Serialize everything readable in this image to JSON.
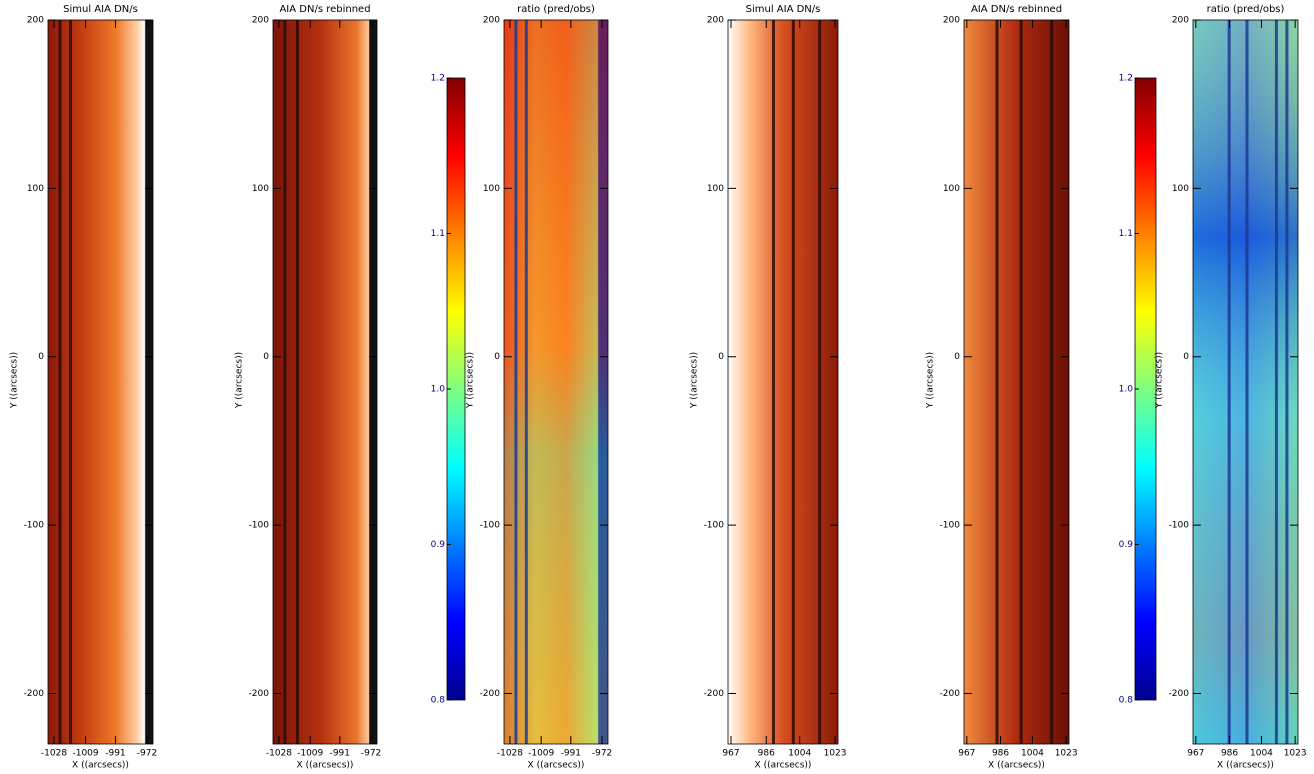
{
  "chart_data": [
    {
      "type": "image",
      "title": "Simul AIA DN/s",
      "xlabel": "X ((arcsecs))",
      "ylabel": "Y ((arcsecs))",
      "xlim": [
        -1031.6,
        -968.4
      ],
      "xticks": [
        -1028,
        -1009,
        -991,
        -972
      ],
      "ylim": [
        -230,
        200
      ],
      "yticks": [
        -200,
        -100,
        0,
        100,
        200
      ]
    },
    {
      "type": "image",
      "title": "AIA DN/s rebinned",
      "xlabel": "X ((arcsecs))",
      "ylabel": "Y ((arcsecs))",
      "xlim": [
        -1031.6,
        -968.4
      ],
      "xticks": [
        -1028,
        -1009,
        -991,
        -972
      ],
      "ylim": [
        -230,
        200
      ],
      "yticks": [
        -200,
        -100,
        0,
        100,
        200
      ]
    },
    {
      "type": "colorbar",
      "ylim": [
        0.8,
        1.2
      ],
      "yticks": [
        0.8,
        0.9,
        {
          "value": 1,
          "label": "1.0"
        },
        1.1,
        1.2
      ]
    },
    {
      "type": "image",
      "title": "ratio (pred/obs)",
      "xlabel": "X ((arcsecs))",
      "ylabel": "Y ((arcsecs))",
      "xlim": [
        -1031.6,
        -968.4
      ],
      "xticks": [
        -1028,
        -1009,
        -991,
        -972
      ],
      "ylim": [
        -230,
        200
      ],
      "yticks": [
        -200,
        -100,
        0,
        100,
        200
      ]
    },
    {
      "type": "image",
      "title": "Simul AIA DN/s",
      "xlabel": "X ((arcsecs))",
      "ylabel": "Y ((arcsecs))",
      "xlim": [
        965.4,
        1024.6
      ],
      "xticks": [
        967,
        986,
        1004,
        1023
      ],
      "ylim": [
        -230,
        200
      ],
      "yticks": [
        -200,
        -100,
        0,
        100,
        200
      ]
    },
    {
      "type": "image",
      "title": "AIA DN/s rebinned",
      "xlabel": "X ((arcsecs))",
      "ylabel": "Y ((arcsecs))",
      "xlim": [
        965.4,
        1024.6
      ],
      "xticks": [
        967,
        986,
        1004,
        1023
      ],
      "ylim": [
        -230,
        200
      ],
      "yticks": [
        -200,
        -100,
        0,
        100,
        200
      ]
    },
    {
      "type": "colorbar",
      "ylim": [
        0.8,
        1.2
      ],
      "yticks": [
        0.8,
        0.9,
        {
          "value": 1,
          "label": "1.0"
        },
        1.1,
        1.2
      ]
    },
    {
      "type": "image",
      "title": "ratio (pred/obs)",
      "xlabel": "X ((arcsecs))",
      "ylabel": "Y ((arcsecs))",
      "xlim": [
        965.4,
        1024.6
      ],
      "xticks": [
        967,
        986,
        1004,
        1023
      ],
      "ylim": [
        -230,
        200
      ],
      "yticks": [
        -200,
        -100,
        0,
        100,
        200
      ]
    }
  ]
}
